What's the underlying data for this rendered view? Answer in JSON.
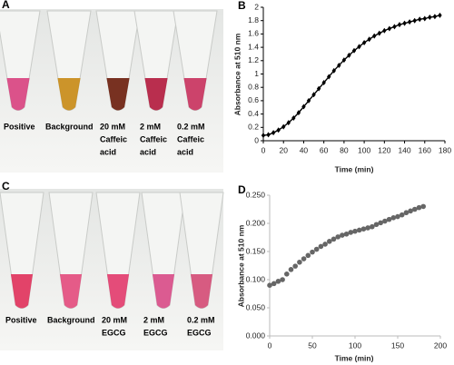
{
  "panels": [
    "A",
    "B",
    "C",
    "D"
  ],
  "photos": [
    {
      "labels": [
        [
          "Positive"
        ],
        [
          "Background"
        ],
        [
          "20 mM",
          "Caffeic",
          "acid"
        ],
        [
          "2 mM",
          "Caffeic",
          "acid"
        ],
        [
          "0.2 mM",
          "Caffeic",
          "acid"
        ]
      ]
    },
    {
      "labels": [
        [
          "Positive"
        ],
        [
          "Background"
        ],
        [
          "20 mM",
          "EGCG"
        ],
        [
          "2 mM",
          "EGCG"
        ],
        [
          "0.2 mM",
          "EGCG"
        ]
      ]
    }
  ],
  "chart_data": [
    {
      "type": "line",
      "xlabel": "Time (min)",
      "ylabel": "Absorbance at 510 nm",
      "xlim": [
        0,
        180
      ],
      "xticks": [
        0,
        20,
        40,
        60,
        80,
        100,
        120,
        140,
        160,
        180
      ],
      "ylim": [
        0,
        2
      ],
      "yticks": [
        0,
        0.2,
        0.4,
        0.6,
        0.8,
        1,
        1.2,
        1.4,
        1.6,
        1.8,
        2
      ],
      "series": [
        {
          "color": "#000000",
          "x": [
            0,
            5,
            10,
            15,
            20,
            25,
            30,
            35,
            40,
            45,
            50,
            55,
            60,
            65,
            70,
            75,
            80,
            85,
            90,
            95,
            100,
            105,
            110,
            115,
            120,
            125,
            130,
            135,
            140,
            145,
            150,
            155,
            160,
            165,
            170,
            175
          ],
          "values": [
            0.08,
            0.09,
            0.12,
            0.16,
            0.21,
            0.27,
            0.34,
            0.42,
            0.51,
            0.6,
            0.69,
            0.78,
            0.87,
            0.96,
            1.05,
            1.13,
            1.21,
            1.28,
            1.35,
            1.41,
            1.47,
            1.52,
            1.57,
            1.61,
            1.65,
            1.68,
            1.71,
            1.74,
            1.76,
            1.78,
            1.8,
            1.82,
            1.83,
            1.85,
            1.86,
            1.88
          ]
        }
      ]
    },
    {
      "type": "scatter",
      "xlabel": "Time (min)",
      "ylabel": "Absorbance at 510 nm",
      "xlim": [
        0,
        200
      ],
      "xticks": [
        0,
        50,
        100,
        150,
        200
      ],
      "ylim": [
        0,
        0.25
      ],
      "yticks": [
        {
          "value": 0,
          "label": "0.000"
        },
        {
          "value": 0.05,
          "label": "0.050"
        },
        {
          "value": 0.1,
          "label": "0.100"
        },
        {
          "value": 0.15,
          "label": "0.150"
        },
        {
          "value": 0.2,
          "label": "0.200"
        },
        {
          "value": 0.25,
          "label": "0.250"
        }
      ],
      "series": [
        {
          "color": "#666666",
          "x": [
            0,
            5,
            10,
            15,
            20,
            25,
            30,
            35,
            40,
            45,
            50,
            55,
            60,
            65,
            70,
            75,
            80,
            85,
            90,
            95,
            100,
            105,
            110,
            115,
            120,
            125,
            130,
            135,
            140,
            145,
            150,
            155,
            160,
            165,
            170,
            175,
            180
          ],
          "values": [
            0.09,
            0.093,
            0.097,
            0.1,
            0.11,
            0.118,
            0.124,
            0.131,
            0.137,
            0.143,
            0.149,
            0.154,
            0.159,
            0.163,
            0.168,
            0.172,
            0.176,
            0.179,
            0.181,
            0.184,
            0.186,
            0.188,
            0.19,
            0.192,
            0.194,
            0.198,
            0.201,
            0.204,
            0.207,
            0.21,
            0.212,
            0.215,
            0.219,
            0.222,
            0.225,
            0.228,
            0.23
          ]
        }
      ]
    }
  ]
}
